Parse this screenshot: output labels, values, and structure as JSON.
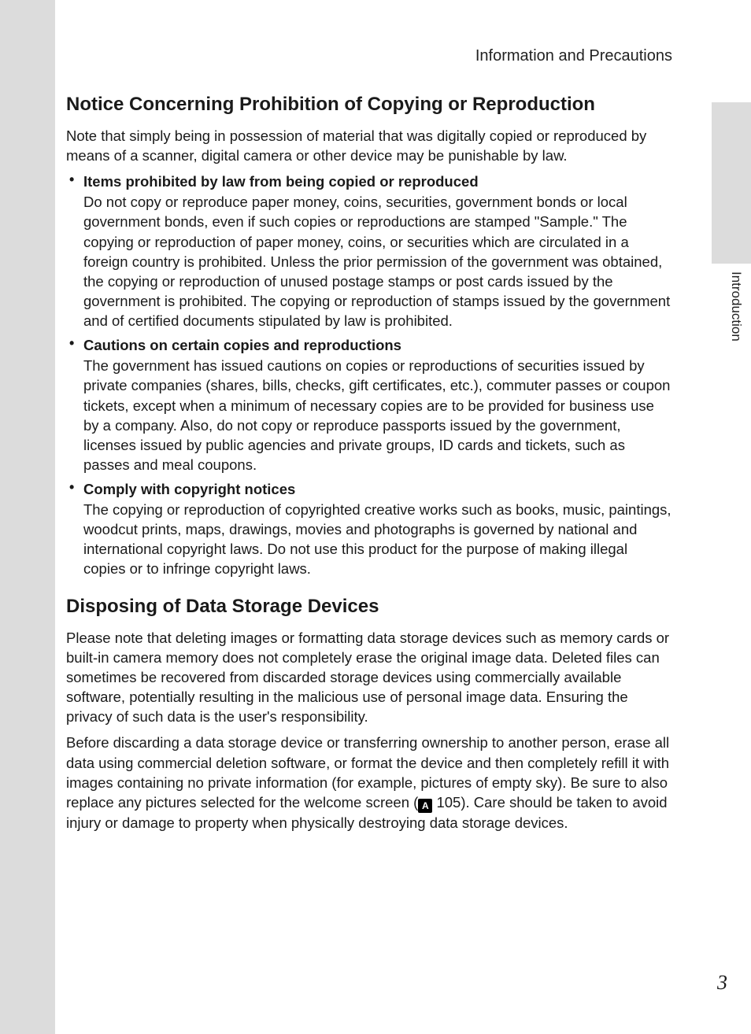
{
  "runningHead": "Information and Precautions",
  "sideTab": "Introduction",
  "pageNumber": "3",
  "section1": {
    "title": "Notice Concerning Prohibition of Copying or Reproduction",
    "lead": "Note that simply being in possession of material that was digitally copied or reproduced by means of a scanner, digital camera or other device may be punishable by law.",
    "items": [
      {
        "title": "Items prohibited by law from being copied or reproduced",
        "body": "Do not copy or reproduce paper money, coins, securities, government bonds or local government bonds, even if such copies or reproductions are stamped \"Sample.\" The copying or reproduction of paper money, coins, or securities which are circulated in a foreign country is prohibited. Unless the prior permission of the government was obtained, the copying or reproduction of unused postage stamps or post cards issued by the government is prohibited. The copying or reproduction of stamps issued by the government and of certified documents stipulated by law is prohibited."
      },
      {
        "title": "Cautions on certain copies and reproductions",
        "body": "The government has issued cautions on copies or reproductions of securities issued by private companies (shares, bills, checks, gift certificates, etc.), commuter passes or coupon tickets, except when a minimum of necessary copies are to be provided for business use by a company. Also, do not copy or reproduce passports issued by the government, licenses issued by public agencies and private groups, ID cards and tickets, such as passes and meal coupons."
      },
      {
        "title": "Comply with copyright notices",
        "body": "The copying or reproduction of copyrighted creative works such as books, music, paintings, woodcut prints, maps, drawings, movies and photographs is governed by national and international copyright laws. Do not use this product for the purpose of making illegal copies or to infringe copyright laws."
      }
    ]
  },
  "section2": {
    "title": "Disposing of Data Storage Devices",
    "para1": "Please note that deleting images or formatting data storage devices such as memory cards or built-in camera memory does not completely erase the original image data. Deleted files can sometimes be recovered from discarded storage devices using commercially available software, potentially resulting in the malicious use of personal image data. Ensuring the privacy of such data is the user's responsibility.",
    "para2a": "Before discarding a data storage device or transferring ownership to another person, erase all data using commercial deletion software, or format the device and then completely refill it with images containing no private information (for example, pictures of empty sky). Be sure to also replace any pictures selected for the welcome screen (",
    "refIconGlyph": "A",
    "refPage": " 105",
    "para2b": "). Care should be taken to avoid injury or damage to property when physically destroying data storage devices."
  }
}
